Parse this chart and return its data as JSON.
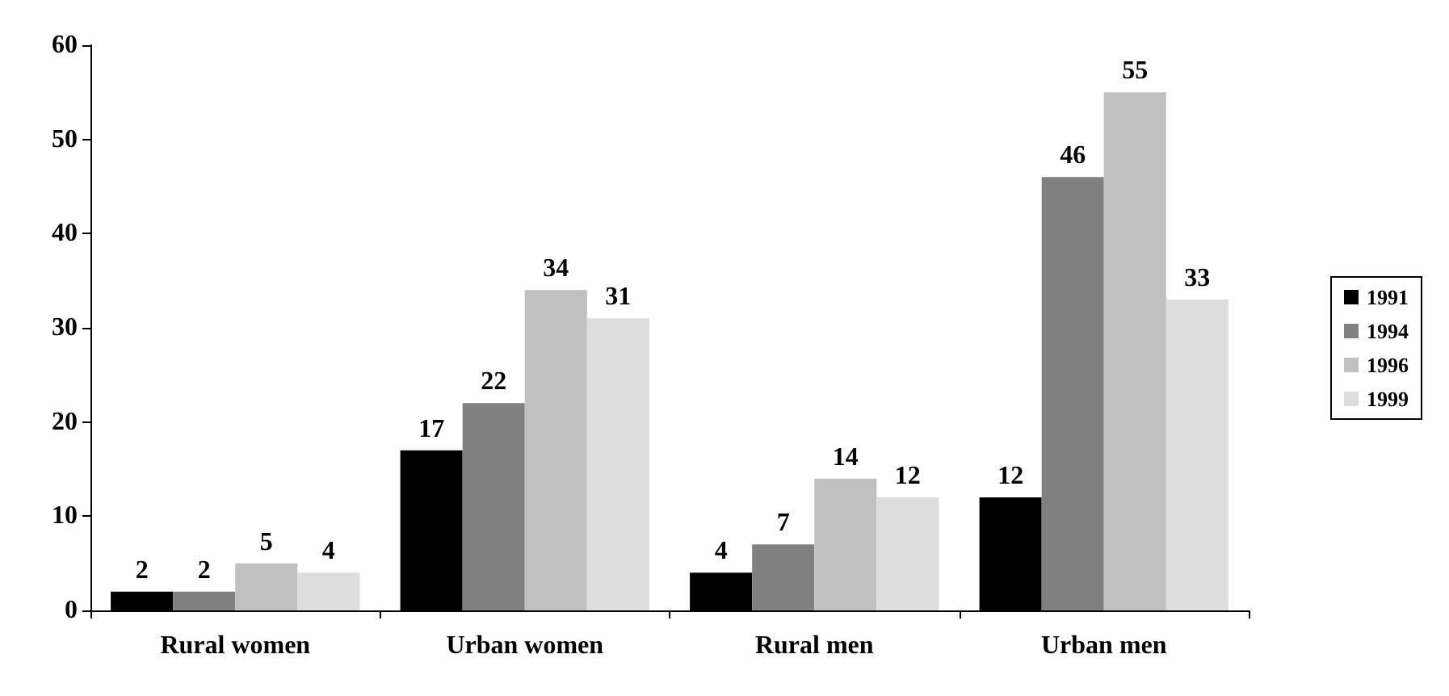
{
  "chart_data": {
    "type": "bar",
    "categories": [
      "Rural women",
      "Urban women",
      "Rural men",
      "Urban men"
    ],
    "series": [
      {
        "name": "1991",
        "color": "#000000",
        "values": [
          2,
          17,
          4,
          12
        ]
      },
      {
        "name": "1994",
        "color": "#808080",
        "values": [
          2,
          22,
          7,
          46
        ]
      },
      {
        "name": "1996",
        "color": "#c0c0c0",
        "values": [
          5,
          34,
          14,
          55
        ]
      },
      {
        "name": "1999",
        "color": "#dddddd",
        "values": [
          4,
          31,
          12,
          33
        ]
      }
    ],
    "ylim": [
      0,
      60
    ],
    "yticks": [
      0,
      10,
      20,
      30,
      40,
      50,
      60
    ],
    "grid": false,
    "legend": "right",
    "data_labels": true
  }
}
